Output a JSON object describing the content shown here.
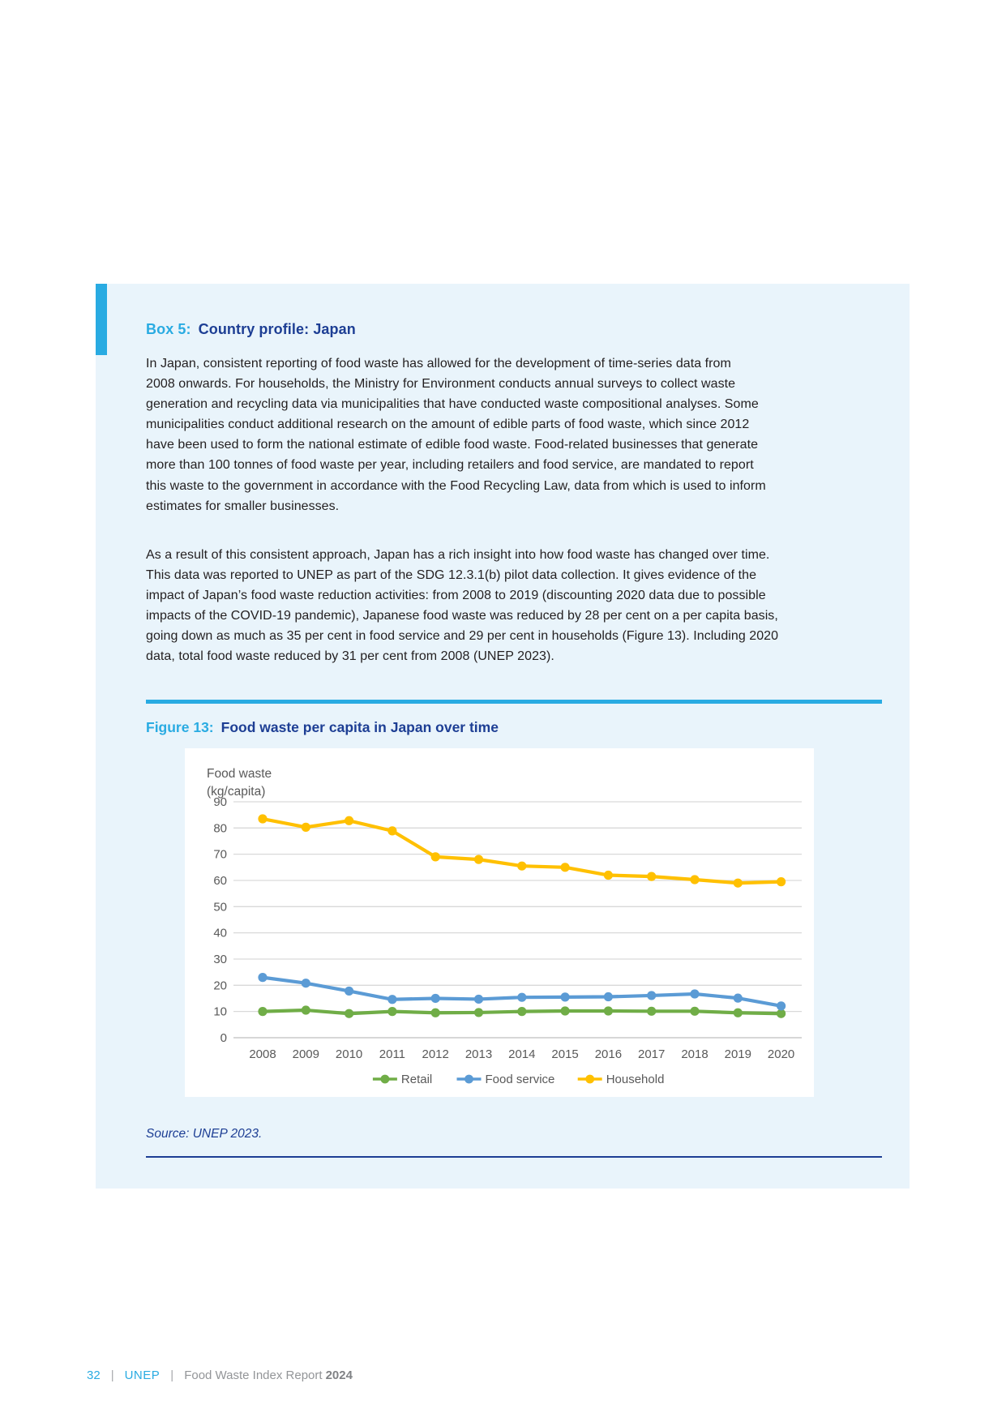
{
  "box": {
    "label": "Box 5:",
    "title": "Country profile: Japan",
    "paragraphs": [
      [
        "In Japan, consistent reporting of food waste has allowed for the development of time-series data from",
        "2008 onwards. For households, the Ministry for Environment conducts annual surveys to collect waste",
        "generation and recycling data via municipalities that have conducted waste compositional analyses. Some",
        "municipalities conduct additional research on the amount of edible parts of food waste, which since 2012",
        "have been used to form the national estimate of edible food waste. Food-related businesses that generate",
        "more than 100 tonnes of food waste per year, including retailers and food service, are mandated to report",
        "this waste to the government in accordance with the Food Recycling Law, data from which is used to inform",
        "estimates for smaller businesses."
      ],
      [
        "As a result of this consistent approach, Japan has a rich insight into how food waste has changed over time.",
        "This data was reported to UNEP as part of the SDG 12.3.1(b) pilot data collection. It gives evidence of the",
        "impact of Japan’s food waste reduction activities: from 2008 to 2019 (discounting 2020 data due to possible",
        "impacts of the COVID-19 pandemic), Japanese food waste was reduced by 28 per cent on a per capita basis,",
        "going down as much as 35 per cent in food service and 29 per cent in households (Figure 13). Including 2020",
        "data, total food waste reduced by 31 per cent from 2008 (UNEP 2023)."
      ]
    ]
  },
  "figure": {
    "label": "Figure 13:",
    "title": "Food waste per capita in Japan over time",
    "source": "Source: UNEP 2023."
  },
  "chart_data": {
    "type": "line",
    "title": "Food waste per capita in Japan over time",
    "ylabel": "Food waste (kg/capita)",
    "ylabel_lines": [
      "Food waste",
      "(kg/capita)"
    ],
    "ylim": [
      0,
      90
    ],
    "ytick_step": 10,
    "grid": true,
    "legend_position": "bottom",
    "categories": [
      "2008",
      "2009",
      "2010",
      "2011",
      "2012",
      "2013",
      "2014",
      "2015",
      "2016",
      "2017",
      "2018",
      "2019",
      "2020"
    ],
    "series": [
      {
        "name": "Retail",
        "color": "#70AD47",
        "values": [
          10,
          10.5,
          9.2,
          10,
          9.5,
          9.6,
          10,
          10.2,
          10.2,
          10.1,
          10.1,
          9.5,
          9.2
        ]
      },
      {
        "name": "Food service",
        "color": "#5B9BD5",
        "values": [
          23,
          20.8,
          17.8,
          14.6,
          15,
          14.7,
          15.4,
          15.5,
          15.6,
          16.1,
          16.7,
          15.1,
          12.1
        ]
      },
      {
        "name": "Household",
        "color": "#FFC000",
        "values": [
          83.5,
          80.3,
          82.8,
          78.9,
          69,
          68,
          65.5,
          65,
          62,
          61.5,
          60.3,
          59,
          59.5
        ]
      }
    ]
  },
  "footer": {
    "page_number": "32",
    "separator": "|",
    "org": "UNEP",
    "report_title": "Food Waste Index Report",
    "report_year": "2024"
  },
  "colors": {
    "accent_blue": "#29abe2",
    "heading_navy": "#1d3e94",
    "box_background": "#e9f4fb",
    "body_text": "#231f20",
    "chart_label_gray": "#595959",
    "gridline_gray": "#d9d9d9",
    "footer_gray": "#939598"
  }
}
